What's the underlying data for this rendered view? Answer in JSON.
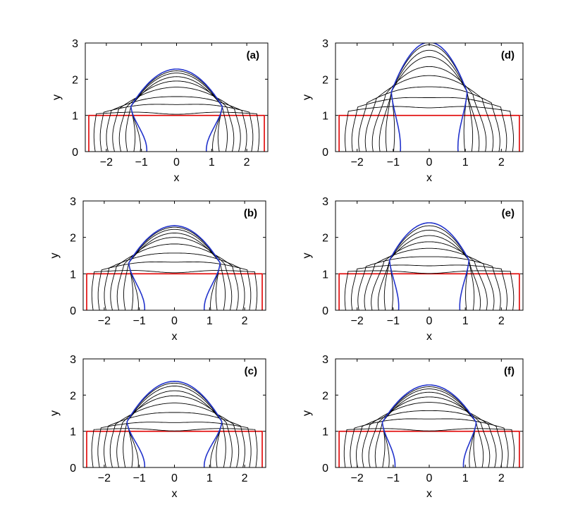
{
  "figure": {
    "colors": {
      "rectangle": "#e00000",
      "final_curve": "#2233cc",
      "curves": "#000000",
      "axes": "#000000"
    }
  },
  "chart_data": [
    {
      "id": "a",
      "type": "line",
      "panel_label": "(a)",
      "xlabel": "x",
      "ylabel": "y",
      "xlim": [
        -2.6,
        2.6
      ],
      "ylim": [
        0,
        3
      ],
      "xticks": [
        -2,
        -1,
        0,
        1,
        2
      ],
      "yticks": [
        0,
        1,
        2,
        3
      ],
      "initial_rectangle": {
        "half_width": 2.5,
        "height": 1
      },
      "pinch_point": {
        "x": 1.3,
        "y": 1.25
      },
      "foot_final": 0.85,
      "apex_heights": [
        1.0,
        1.12,
        1.36,
        1.55,
        1.78,
        1.95,
        2.07,
        2.17,
        2.23,
        2.28
      ],
      "final_apex": 2.28,
      "grid": false,
      "legend": "none"
    },
    {
      "id": "b",
      "type": "line",
      "panel_label": "(b)",
      "xlabel": "x",
      "ylabel": "y",
      "xlim": [
        -2.6,
        2.6
      ],
      "ylim": [
        0,
        3
      ],
      "xticks": [
        -2,
        -1,
        0,
        1,
        2
      ],
      "yticks": [
        0,
        1,
        2,
        3
      ],
      "initial_rectangle": {
        "half_width": 2.5,
        "height": 1
      },
      "pinch_point": {
        "x": 1.3,
        "y": 1.3
      },
      "foot_final": 0.85,
      "apex_heights": [
        1.0,
        1.12,
        1.38,
        1.6,
        1.82,
        2.0,
        2.12,
        2.22,
        2.28,
        2.32
      ],
      "final_apex": 2.32,
      "grid": false,
      "legend": "none"
    },
    {
      "id": "c",
      "type": "line",
      "panel_label": "(c)",
      "xlabel": "x",
      "ylabel": "y",
      "xlim": [
        -2.6,
        2.6
      ],
      "ylim": [
        0,
        3
      ],
      "xticks": [
        -2,
        -1,
        0,
        1,
        2
      ],
      "yticks": [
        0,
        1,
        2,
        3
      ],
      "initial_rectangle": {
        "half_width": 2.5,
        "height": 1
      },
      "pinch_point": {
        "x": 1.35,
        "y": 1.27
      },
      "foot_final": 0.85,
      "apex_heights": [
        1.0,
        1.1,
        1.3,
        1.55,
        1.78,
        1.98,
        2.12,
        2.25,
        2.33,
        2.38
      ],
      "final_apex": 2.38,
      "grid": false,
      "legend": "none"
    },
    {
      "id": "d",
      "type": "line",
      "panel_label": "(d)",
      "xlabel": "x",
      "ylabel": "y",
      "xlim": [
        -2.6,
        2.6
      ],
      "ylim": [
        0,
        3
      ],
      "xticks": [
        -2,
        -1,
        0,
        1,
        2
      ],
      "yticks": [
        0,
        1,
        2,
        3
      ],
      "initial_rectangle": {
        "half_width": 2.5,
        "height": 1
      },
      "pinch_point": {
        "x": 1.05,
        "y": 1.65
      },
      "foot_final": 0.8,
      "apex_heights": [
        1.0,
        1.3,
        1.55,
        1.82,
        2.1,
        2.35,
        2.62,
        2.8,
        2.95,
        3.02
      ],
      "final_apex": 3.02,
      "grid": false,
      "legend": "none"
    },
    {
      "id": "e",
      "type": "line",
      "panel_label": "(e)",
      "xlabel": "x",
      "ylabel": "y",
      "xlim": [
        -2.6,
        2.6
      ],
      "ylim": [
        0,
        3
      ],
      "xticks": [
        -2,
        -1,
        0,
        1,
        2
      ],
      "yticks": [
        0,
        1,
        2,
        3
      ],
      "initial_rectangle": {
        "half_width": 2.5,
        "height": 1
      },
      "pinch_point": {
        "x": 1.1,
        "y": 1.38
      },
      "foot_final": 0.85,
      "apex_heights": [
        1.0,
        1.1,
        1.28,
        1.5,
        1.7,
        1.88,
        2.05,
        2.2,
        2.32,
        2.4
      ],
      "final_apex": 2.4,
      "grid": false,
      "legend": "none"
    },
    {
      "id": "f",
      "type": "line",
      "panel_label": "(f)",
      "xlabel": "x",
      "ylabel": "y",
      "xlim": [
        -2.6,
        2.6
      ],
      "ylim": [
        0,
        3
      ],
      "xticks": [
        -2,
        -1,
        0,
        1,
        2
      ],
      "yticks": [
        0,
        1,
        2,
        3
      ],
      "initial_rectangle": {
        "half_width": 2.5,
        "height": 1
      },
      "pinch_point": {
        "x": 1.3,
        "y": 1.25
      },
      "foot_final": 0.95,
      "apex_heights": [
        1.0,
        1.1,
        1.4,
        1.6,
        1.8,
        1.95,
        2.08,
        2.17,
        2.23,
        2.28
      ],
      "final_apex": 2.28,
      "grid": false,
      "legend": "none"
    }
  ]
}
